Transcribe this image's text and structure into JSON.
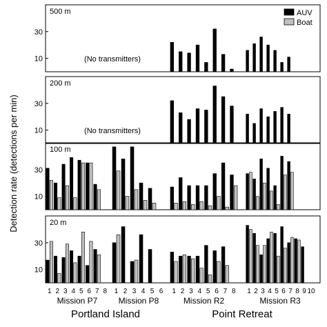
{
  "chart_data": {
    "type": "bar",
    "ylabel": "Detection rate (detections per min)",
    "legend": {
      "placement": "top-right",
      "entries": [
        {
          "name": "AUV",
          "color": "#000000"
        },
        {
          "name": "Boat",
          "color": "#c0c0c0"
        }
      ]
    },
    "ylim": [
      0,
      50
    ],
    "yticks": [
      10,
      30
    ],
    "missions": [
      {
        "name": "Mission P7",
        "categories": [
          "1",
          "2",
          "3",
          "4",
          "5",
          "6",
          "7",
          "8"
        ]
      },
      {
        "name": "Mission P8",
        "categories": [
          "1",
          "2",
          "3",
          "4",
          "5",
          "6"
        ]
      },
      {
        "name": "Mission R2",
        "categories": [
          "1",
          "2",
          "3",
          "4",
          "5",
          "6",
          "7",
          "8"
        ]
      },
      {
        "name": "Mission R3",
        "categories": [
          "1",
          "2",
          "3",
          "4",
          "5",
          "6",
          "7",
          "8",
          "9",
          "10"
        ]
      }
    ],
    "locations": [
      {
        "name": "Portland Island",
        "missions": [
          0,
          1
        ]
      },
      {
        "name": "Point Retreat",
        "missions": [
          2,
          3
        ]
      }
    ],
    "panels": [
      {
        "label": "500 m",
        "note": "(No transmitters)",
        "note_missions": [
          0,
          1
        ],
        "series": [
          {
            "name": "AUV",
            "values": [
              [
                0,
                0,
                0,
                0,
                0,
                0,
                0,
                0
              ],
              [
                0,
                0,
                0,
                0,
                0,
                0
              ],
              [
                22,
                15,
                14,
                20,
                7,
                32,
                13,
                2
              ],
              [
                16,
                21,
                26,
                20,
                16,
                7,
                11,
                0,
                0,
                0
              ]
            ]
          },
          {
            "name": "Boat",
            "values": [
              [
                0,
                0,
                0,
                0,
                0,
                0,
                0,
                0
              ],
              [
                0,
                0,
                0,
                0,
                0,
                0
              ],
              [
                0,
                0,
                0,
                0,
                0,
                0,
                0,
                0
              ],
              [
                0,
                0,
                0,
                0,
                0,
                0,
                0,
                0,
                0,
                0
              ]
            ]
          }
        ]
      },
      {
        "label": "200 m",
        "note": "(No transmitters)",
        "note_missions": [
          0,
          1
        ],
        "series": [
          {
            "name": "AUV",
            "values": [
              [
                0,
                0,
                0,
                0,
                0,
                0,
                0,
                0
              ],
              [
                0,
                0,
                0,
                0,
                0,
                0
              ],
              [
                32,
                23,
                18,
                26,
                25,
                43,
                35,
                28
              ],
              [
                22,
                15,
                26,
                20,
                24,
                27,
                22,
                0,
                0,
                0
              ]
            ]
          },
          {
            "name": "Boat",
            "values": [
              [
                0,
                0,
                0,
                0,
                0,
                0,
                0,
                0
              ],
              [
                0,
                0,
                0,
                0,
                0,
                0
              ],
              [
                0,
                0,
                0,
                0,
                0,
                0,
                0,
                0
              ],
              [
                0,
                0,
                0,
                0,
                0,
                0,
                0,
                0,
                0,
                0
              ]
            ]
          }
        ]
      },
      {
        "label": "100 m",
        "note": "",
        "note_missions": [],
        "series": [
          {
            "name": "AUV",
            "values": [
              [
                31,
                20,
                34,
                39,
                37,
                35,
                19,
                0
              ],
              [
                47,
                38,
                47,
                20,
                16,
                0
              ],
              [
                17,
                24,
                18,
                18,
                18,
                27,
                35,
                26
              ],
              [
                27,
                23,
                38,
                31,
                18,
                40,
                36,
                0,
                0,
                0
              ]
            ]
          },
          {
            "name": "Boat",
            "values": [
              [
                22,
                9,
                18,
                9,
                35,
                35,
                15,
                0
              ],
              [
                29,
                10,
                15,
                7,
                5,
                0
              ],
              [
                5,
                6,
                4,
                6,
                3,
                10,
                2,
                18
              ],
              [
                28,
                10,
                20,
                14,
                4,
                26,
                28,
                0,
                0,
                0
              ]
            ]
          }
        ]
      },
      {
        "label": "20 m",
        "note": "",
        "note_missions": [],
        "series": [
          {
            "name": "AUV",
            "values": [
              [
                17,
                20,
                19,
                24,
                20,
                13,
                25,
                0
              ],
              [
                30,
                42,
                16,
                36,
                25,
                0
              ],
              [
                23,
                20,
                20,
                20,
                28,
                24,
                27,
                0
              ],
              [
                43,
                37,
                21,
                33,
                37,
                42,
                30,
                33,
                27,
                0
              ]
            ]
          },
          {
            "name": "Boat",
            "values": [
              [
                31,
                7,
                29,
                15,
                38,
                31,
                21,
                0
              ],
              [
                36,
                0,
                17,
                0,
                0,
                0
              ],
              [
                16,
                21,
                18,
                11,
                6,
                16,
                13,
                0
              ],
              [
                40,
                28,
                28,
                38,
                20,
                26,
                34,
                32,
                0,
                0
              ]
            ]
          }
        ]
      }
    ]
  }
}
